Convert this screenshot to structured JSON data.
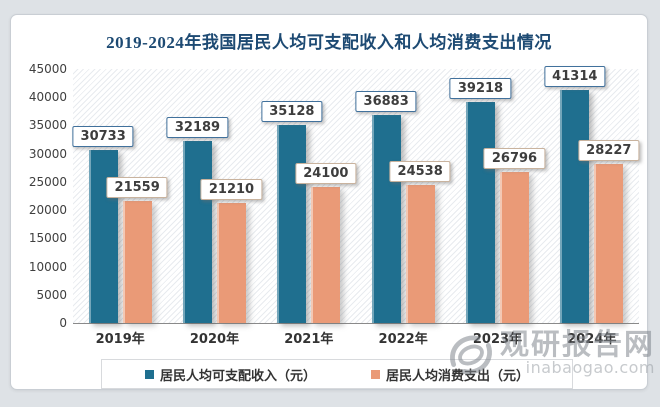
{
  "chart_data": {
    "type": "bar",
    "title": "2019-2024年我国居民人均可支配收入和人均消费支出情况",
    "categories": [
      "2019年",
      "2020年",
      "2021年",
      "2022年",
      "2023年",
      "2024年"
    ],
    "series": [
      {
        "name": "居民人均可支配收入（元）",
        "color": "#1f6f8f",
        "values": [
          30733,
          32189,
          35128,
          36883,
          39218,
          41314
        ]
      },
      {
        "name": "居民人均消费支出（元）",
        "color": "#ea9a77",
        "values": [
          21559,
          21210,
          24100,
          24538,
          26796,
          28227
        ]
      }
    ],
    "ylim": [
      0,
      45000
    ],
    "yticks": [
      "0",
      "5000",
      "10000",
      "15000",
      "20000",
      "25000",
      "30000",
      "35000",
      "40000",
      "45000"
    ],
    "grid": false,
    "legend_position": "bottom",
    "data_labels": true
  },
  "watermark": {
    "brand": "观研报告网",
    "domain": "inabaogao.com"
  }
}
